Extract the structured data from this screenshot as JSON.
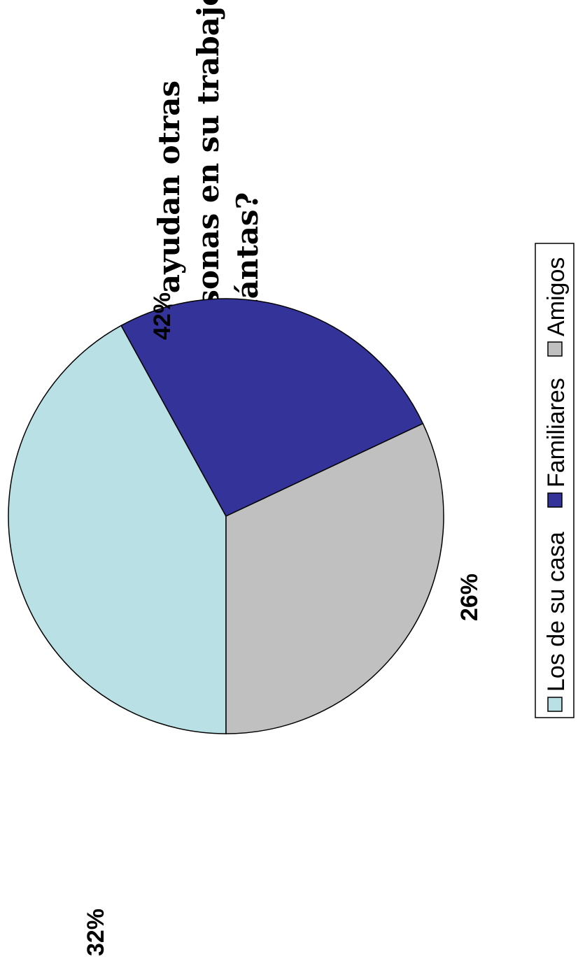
{
  "chart_data": {
    "type": "pie",
    "title_lines": [
      "¿Lo ayudan otras",
      "personas en su trabajo?",
      "¿Cuántas?"
    ],
    "categories": [
      "Los de su casa",
      "Familiares",
      "Amigos"
    ],
    "values": [
      42,
      26,
      32
    ],
    "labels": [
      "42%",
      "26%",
      "32%"
    ],
    "colors": [
      "#b9e0e5",
      "#333399",
      "#c0c0c0"
    ],
    "legend_placement": "bottom"
  }
}
